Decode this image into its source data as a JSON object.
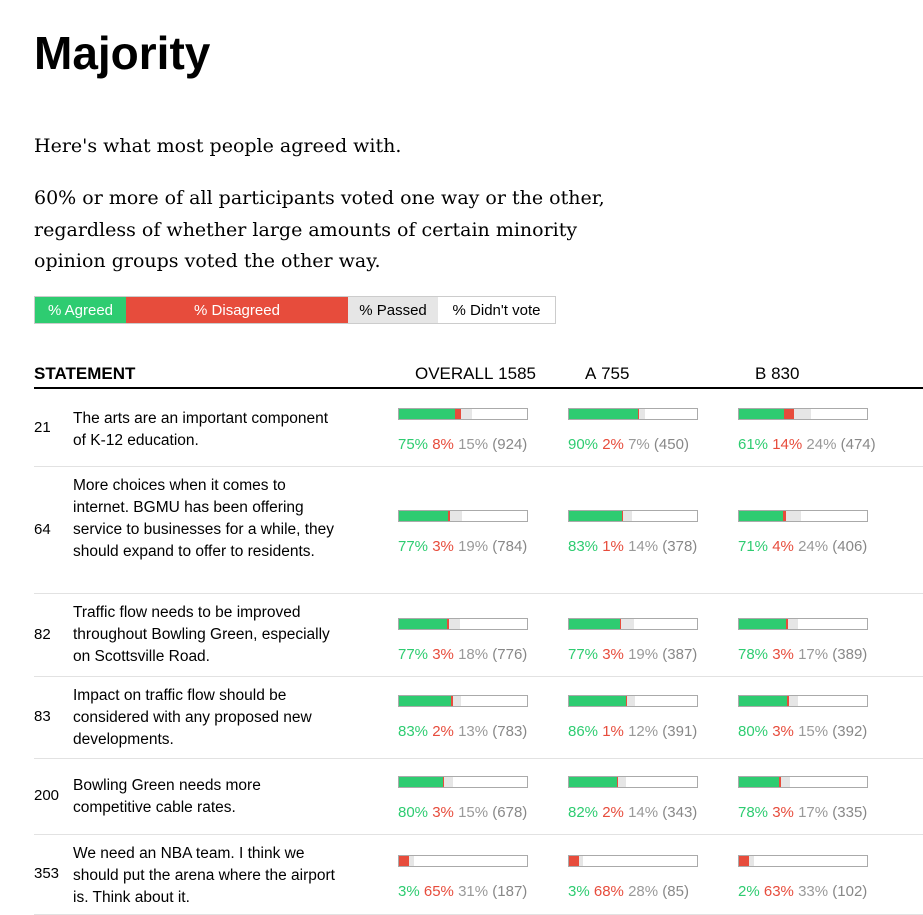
{
  "title": "Majority",
  "intro": "Here's what most people agreed with.",
  "description": "60% or more of all participants voted one way or the other, regardless of whether large amounts of certain minority opinion groups voted the other way.",
  "legend": {
    "agreed": "% Agreed",
    "disagreed": "% Disagreed",
    "passed": "% Passed",
    "didnt_vote": "% Didn't vote"
  },
  "colors": {
    "agree": "#2ecc71",
    "disagree": "#e74c3c",
    "pass": "#e6e6e6"
  },
  "header": {
    "statement": "STATEMENT",
    "overall": "OVERALL",
    "overall_n": "1585",
    "a": "A",
    "a_n": "755",
    "b": "B",
    "b_n": "830"
  },
  "group_totals": [
    1585,
    755,
    830
  ],
  "rows": [
    {
      "id": "21",
      "text": "The arts are an important component of K-12 education.",
      "groups": [
        [
          75,
          8,
          15,
          924
        ],
        [
          90,
          2,
          7,
          450
        ],
        [
          61,
          14,
          24,
          474
        ]
      ]
    },
    {
      "id": "64",
      "text": "More choices when it comes to internet. BGMU has been offering service to businesses for a while, they should expand to offer to residents.",
      "groups": [
        [
          77,
          3,
          19,
          784
        ],
        [
          83,
          1,
          14,
          378
        ],
        [
          71,
          4,
          24,
          406
        ]
      ]
    },
    {
      "id": "82",
      "text": "Traffic flow needs to be improved throughout Bowling Green, especially on Scottsville Road.",
      "groups": [
        [
          77,
          3,
          18,
          776
        ],
        [
          77,
          3,
          19,
          387
        ],
        [
          78,
          3,
          17,
          389
        ]
      ]
    },
    {
      "id": "83",
      "text": "Impact on traffic flow should be considered with any proposed new developments.",
      "groups": [
        [
          83,
          2,
          13,
          783
        ],
        [
          86,
          1,
          12,
          391
        ],
        [
          80,
          3,
          15,
          392
        ]
      ]
    },
    {
      "id": "200",
      "text": "Bowling Green needs more competitive cable rates.",
      "groups": [
        [
          80,
          3,
          15,
          678
        ],
        [
          82,
          2,
          14,
          343
        ],
        [
          78,
          3,
          17,
          335
        ]
      ]
    },
    {
      "id": "353",
      "text": "We need an NBA team. I think we should put the arena where the airport is. Think about it.",
      "groups": [
        [
          3,
          65,
          31,
          187
        ],
        [
          3,
          68,
          28,
          85
        ],
        [
          2,
          63,
          33,
          102
        ]
      ]
    }
  ]
}
